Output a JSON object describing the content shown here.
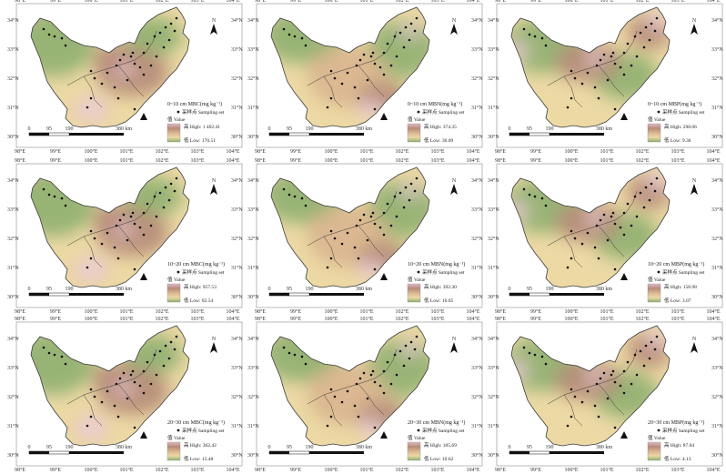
{
  "axes": {
    "lon_labels": [
      "98°E",
      "99°E",
      "100°E",
      "101°E",
      "102°E",
      "103°E",
      "104°E"
    ],
    "lat_labels": [
      "34°N",
      "33°N",
      "32°N",
      "31°N",
      "30°N"
    ]
  },
  "north_arrow": {
    "label": "N"
  },
  "scale_bar": {
    "ticks": [
      "0",
      "95",
      "190",
      "380 km"
    ]
  },
  "legend_common": {
    "sampling_label": "采样点 Sampling set",
    "value_label": "值 Value",
    "high_prefix": "高 High:",
    "low_prefix": "低 Low:"
  },
  "panels": [
    {
      "title": "0~10 cm MBC(mg kg⁻¹)",
      "high": "1 402.41",
      "low": "170.51",
      "ramp": "mbc"
    },
    {
      "title": "0~10 cm MBN(mg kg⁻¹)",
      "high": "374.35",
      "low": "30.09",
      "ramp": "mbn"
    },
    {
      "title": "0~10 cm MBP(mg kg⁻¹)",
      "high": "298.06",
      "low": "9.36",
      "ramp": "mbp"
    },
    {
      "title": "10~20 cm MBC(mg kg⁻¹)",
      "high": "957.53",
      "low": "82.54",
      "ramp": "mbc"
    },
    {
      "title": "10~20 cm MBN(mg kg⁻¹)",
      "high": "392.30",
      "low": "10.05",
      "ramp": "mbn"
    },
    {
      "title": "10~20 cm MBP(mg kg⁻¹)",
      "high": "158.98",
      "low": "3.07",
      "ramp": "mbp"
    },
    {
      "title": "20~30 cm MBC(mg kg⁻¹)",
      "high": "362.42",
      "low": "15.48",
      "ramp": "mbc"
    },
    {
      "title": "20~30 cm MBN(mg kg⁻¹)",
      "high": "105.69",
      "low": "10.62",
      "ramp": "mbn"
    },
    {
      "title": "20~30 cm MBP(mg kg⁻¹)",
      "high": "87.04",
      "low": "4.13",
      "ramp": "mbp"
    }
  ],
  "colors": {
    "outline": "#3a3a3a",
    "background": "#ffffff",
    "green": "#8fb070",
    "yellow": "#ecd9a4",
    "tan": "#d9b58f",
    "brown": "#b58b78",
    "pink": "#e2bcc8",
    "white": "#fbf1f4"
  }
}
